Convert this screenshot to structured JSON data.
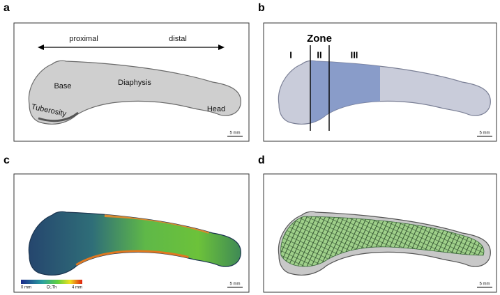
{
  "panels": [
    {
      "letter": "a",
      "labels": {
        "proximal": "proximal",
        "distal": "distal",
        "base": "Base",
        "diaphysis": "Diaphysis",
        "tuberosity": "Tuberosity",
        "head": "Head"
      },
      "scale": "5 mm"
    },
    {
      "letter": "b",
      "zone_title": "Zone",
      "zones": [
        "I",
        "II",
        "III"
      ],
      "scale": "5 mm"
    },
    {
      "letter": "c",
      "colorbar": {
        "min": "0 mm",
        "name": "Ct.Th",
        "max": "4 mm"
      },
      "scale": "5 mm"
    },
    {
      "letter": "d",
      "scale": "5 mm"
    }
  ]
}
